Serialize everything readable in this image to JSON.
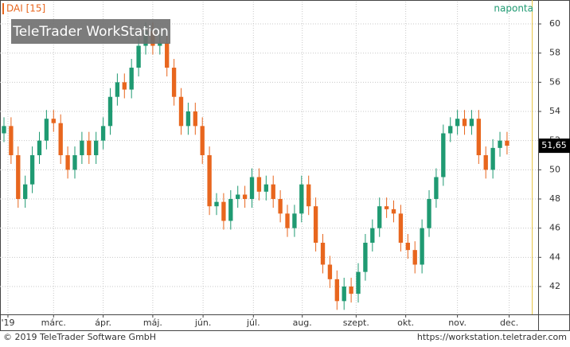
{
  "chart_data": {
    "type": "candlestick",
    "title": "DAI [15]",
    "interval": "naponta",
    "logo": "TeleTrader WorkStation",
    "footer_left": "© 2019 TeleTrader Software GmbH",
    "footer_right": "https://workstation.teletrader.com",
    "x": [
      0,
      1,
      2,
      3,
      4,
      5,
      6,
      7,
      8,
      9,
      10,
      11,
      12,
      13,
      14,
      15,
      16,
      17,
      18,
      19,
      20,
      21,
      22,
      23,
      24,
      25,
      26,
      27,
      28,
      29,
      30,
      31,
      32,
      33,
      34,
      35,
      36,
      37,
      38,
      39,
      40,
      41,
      42,
      43,
      44,
      45,
      46,
      47,
      48,
      49,
      50,
      51,
      52,
      53,
      54,
      55,
      56,
      57,
      58,
      59,
      60,
      61,
      62,
      63,
      64,
      65,
      66,
      67,
      68,
      69,
      70,
      71
    ],
    "open": [
      52.5,
      53,
      51,
      48,
      49,
      51,
      52,
      53.5,
      53.2,
      51,
      50,
      51,
      52,
      51,
      52,
      53,
      55,
      56,
      55.5,
      57,
      58.5,
      59.5,
      58.5,
      58.7,
      57,
      55,
      53,
      54,
      53,
      51,
      47.5,
      47.8,
      46.5,
      48,
      48.3,
      48,
      49.5,
      48.5,
      49,
      48,
      47,
      46,
      47,
      49,
      47.5,
      45,
      43.5,
      42.5,
      41,
      42,
      41.5,
      43,
      45,
      46,
      47.5,
      47.3,
      47,
      45,
      44.5,
      43.5,
      46,
      48,
      49.5,
      52.5,
      53,
      53.5,
      53,
      53.5,
      51,
      50,
      51.5,
      52
    ],
    "high": [
      53.6,
      53.6,
      51.6,
      49.6,
      51.6,
      52.6,
      54.1,
      54.1,
      53.8,
      51.6,
      51.6,
      52.6,
      52.6,
      52.6,
      53.6,
      55.6,
      56.6,
      56.6,
      57.6,
      59.1,
      60.1,
      60.1,
      59.3,
      59.3,
      57.6,
      55.6,
      54.6,
      54.6,
      53.6,
      51.6,
      48.4,
      48.4,
      48.6,
      48.9,
      48.9,
      50.1,
      50.1,
      49.6,
      49.6,
      48.6,
      47.6,
      47.6,
      49.6,
      49.6,
      48.1,
      45.6,
      44.1,
      43.1,
      42.6,
      42.6,
      43.6,
      45.6,
      46.6,
      48.1,
      48.1,
      47.9,
      47.6,
      45.6,
      45.1,
      46.6,
      48.6,
      50.1,
      53.1,
      53.6,
      54.1,
      54.1,
      54.1,
      54.1,
      51.6,
      52.1,
      52.6,
      52.6
    ],
    "low": [
      51.9,
      50.4,
      47.4,
      47.4,
      48.4,
      50.4,
      51.4,
      52.6,
      50.4,
      49.4,
      49.4,
      50.4,
      50.4,
      50.4,
      51.4,
      52.4,
      54.4,
      54.9,
      54.9,
      56.4,
      57.9,
      57.9,
      57.9,
      56.4,
      54.4,
      52.4,
      52.4,
      52.4,
      50.4,
      46.9,
      46.9,
      45.9,
      45.9,
      47.4,
      47.4,
      47.4,
      47.9,
      47.9,
      47.4,
      46.4,
      45.4,
      45.4,
      46.4,
      46.9,
      44.4,
      42.9,
      41.9,
      40.4,
      40.4,
      40.9,
      40.9,
      42.4,
      44.4,
      45.4,
      46.7,
      46.4,
      44.4,
      43.9,
      42.9,
      42.9,
      45.4,
      47.4,
      48.9,
      51.9,
      52.4,
      52.4,
      52.4,
      50.4,
      49.4,
      49.4,
      50.9,
      51.05
    ],
    "close": [
      53,
      51,
      48,
      49,
      51,
      52,
      53.5,
      53.2,
      51,
      50,
      51,
      52,
      51,
      52,
      53,
      55,
      56,
      55.5,
      57,
      58.5,
      59.5,
      58.5,
      58.7,
      57,
      55,
      53,
      54,
      53,
      51,
      47.5,
      47.8,
      46.5,
      48,
      48.3,
      48,
      49.5,
      48.5,
      49,
      48,
      47,
      46,
      47,
      49,
      47.5,
      45,
      43.5,
      42.5,
      41,
      42,
      41.5,
      43,
      45,
      46,
      47.5,
      47.3,
      47,
      45,
      44.5,
      43.5,
      46,
      48,
      49.5,
      52.5,
      53,
      53.5,
      53,
      53.5,
      51,
      50,
      51.5,
      52,
      51.65
    ],
    "up_color": "#1f9a72",
    "down_color": "#e8661e",
    "last_price": {
      "value": 51.65,
      "label": "51,65"
    },
    "xlim": [
      -0.56,
      75.39
    ],
    "xticks": [
      {
        "value": 0.56,
        "label": "'19"
      },
      {
        "value": 7.0,
        "label": "márc."
      },
      {
        "value": 14.0,
        "label": "ápr."
      },
      {
        "value": 21.0,
        "label": "máj."
      },
      {
        "value": 28.1,
        "label": "jún."
      },
      {
        "value": 35.2,
        "label": "júl."
      },
      {
        "value": 42.1,
        "label": "aug."
      },
      {
        "value": 49.7,
        "label": "szept."
      },
      {
        "value": 56.7,
        "label": "okt."
      },
      {
        "value": 64.0,
        "label": "nov."
      },
      {
        "value": 71.3,
        "label": "dec."
      }
    ],
    "ylim": [
      40.09,
      61.53
    ],
    "yticks": [
      42,
      44,
      46,
      48,
      50,
      52,
      54,
      56,
      58,
      60
    ],
    "grid": true
  }
}
